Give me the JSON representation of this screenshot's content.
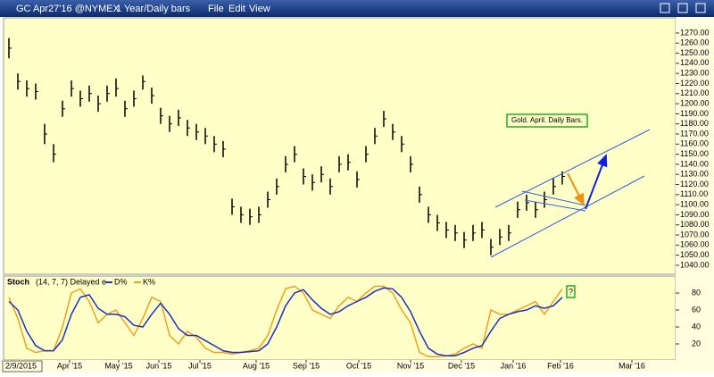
{
  "chart_data": {
    "type": "ohlc",
    "toolbar": {
      "symbol": "GC Apr27'16 @NYMEX",
      "period": "1 Year/Daily bars",
      "menus": [
        "File",
        "Edit",
        "View"
      ]
    },
    "start_date_label": "2/9/2015",
    "annotation": "Gold. April. Daily Bars.",
    "high": [
      1265,
      1230,
      1223,
      1220,
      1180,
      1160,
      1203,
      1223,
      1213,
      1218,
      1208,
      1218,
      1225,
      1203,
      1213,
      1228,
      1216,
      1196,
      1188,
      1194,
      1184,
      1180,
      1176,
      1168,
      1163,
      1106,
      1098,
      1096,
      1098,
      1113,
      1126,
      1148,
      1158,
      1136,
      1130,
      1138,
      1126,
      1148,
      1150,
      1133,
      1158,
      1176,
      1193,
      1180,
      1168,
      1148,
      1118,
      1098,
      1090,
      1083,
      1080,
      1073,
      1080,
      1083,
      1066,
      1076,
      1080,
      1103,
      1110,
      1103,
      1113,
      1126,
      1133
    ],
    "low": [
      1245,
      1214,
      1207,
      1204,
      1160,
      1142,
      1187,
      1207,
      1197,
      1202,
      1192,
      1202,
      1207,
      1187,
      1197,
      1214,
      1200,
      1180,
      1172,
      1178,
      1168,
      1164,
      1160,
      1152,
      1147,
      1090,
      1082,
      1080,
      1082,
      1097,
      1110,
      1132,
      1142,
      1120,
      1114,
      1122,
      1110,
      1132,
      1134,
      1117,
      1142,
      1160,
      1177,
      1164,
      1152,
      1132,
      1102,
      1082,
      1074,
      1067,
      1064,
      1057,
      1064,
      1067,
      1050,
      1060,
      1064,
      1087,
      1094,
      1087,
      1097,
      1110,
      1120
    ],
    "close": [
      1255,
      1222,
      1215,
      1212,
      1170,
      1150,
      1195,
      1215,
      1205,
      1210,
      1200,
      1210,
      1215,
      1195,
      1205,
      1222,
      1208,
      1188,
      1180,
      1186,
      1176,
      1172,
      1168,
      1160,
      1155,
      1098,
      1090,
      1088,
      1090,
      1105,
      1118,
      1140,
      1150,
      1128,
      1122,
      1130,
      1118,
      1140,
      1142,
      1125,
      1150,
      1168,
      1185,
      1172,
      1160,
      1140,
      1110,
      1090,
      1082,
      1075,
      1072,
      1065,
      1072,
      1075,
      1058,
      1068,
      1072,
      1095,
      1102,
      1095,
      1105,
      1118,
      1128
    ],
    "color": "#000000",
    "xlim": [
      -0.6,
      74.7
    ],
    "xticks": [
      {
        "value": 6.8,
        "label": "Apr '15"
      },
      {
        "value": 12.3,
        "label": "May '15"
      },
      {
        "value": 16.8,
        "label": "Jun '15"
      },
      {
        "value": 21.4,
        "label": "Jul '15"
      },
      {
        "value": 27.7,
        "label": "Aug '15"
      },
      {
        "value": 33.3,
        "label": "Sep '15"
      },
      {
        "value": 39.2,
        "label": "Oct '15"
      },
      {
        "value": 45,
        "label": "Nov '15"
      },
      {
        "value": 50.7,
        "label": "Dec '15"
      },
      {
        "value": 56.5,
        "label": "Jan '16"
      },
      {
        "value": 61.8,
        "label": "Feb '16"
      },
      {
        "value": 69.8,
        "label": "Mar '16"
      }
    ],
    "ylim": [
      1032,
      1285
    ],
    "yticks": [
      {
        "value": 1040,
        "label": "1040.00"
      },
      {
        "value": 1050,
        "label": "1050.00"
      },
      {
        "value": 1060,
        "label": "1060.00"
      },
      {
        "value": 1070,
        "label": "1070.00"
      },
      {
        "value": 1080,
        "label": "1080.00"
      },
      {
        "value": 1090,
        "label": "1090.00"
      },
      {
        "value": 1100,
        "label": "1100.00"
      },
      {
        "value": 1110,
        "label": "1110.00"
      },
      {
        "value": 1120,
        "label": "1120.00"
      },
      {
        "value": 1130,
        "label": "1130.00"
      },
      {
        "value": 1140,
        "label": "1140.00"
      },
      {
        "value": 1150,
        "label": "1150.00"
      },
      {
        "value": 1160,
        "label": "1160.00"
      },
      {
        "value": 1170,
        "label": "1170.00"
      },
      {
        "value": 1180,
        "label": "1180.00"
      },
      {
        "value": 1190,
        "label": "1190.00"
      },
      {
        "value": 1200,
        "label": "1200.00"
      },
      {
        "value": 1210,
        "label": "1210.00"
      },
      {
        "value": 1220,
        "label": "1220.00"
      },
      {
        "value": 1230,
        "label": "1230.00"
      },
      {
        "value": 1240,
        "label": "1240.00"
      },
      {
        "value": 1250,
        "label": "1250.00"
      },
      {
        "value": 1260,
        "label": "1260.00"
      },
      {
        "value": 1270,
        "label": "1270.00"
      }
    ],
    "stoch": {
      "title": "Stoch",
      "params": "(14, 7, 7) Delayed e",
      "annotation": "?",
      "ylim": [
        0,
        99
      ],
      "yticks": [
        20,
        40,
        60,
        80
      ],
      "series": [
        {
          "name": "D%",
          "color": "#1f2fbf",
          "values": [
            70,
            60,
            35,
            18,
            12,
            12,
            25,
            55,
            75,
            78,
            62,
            55,
            55,
            52,
            42,
            40,
            55,
            68,
            55,
            38,
            30,
            30,
            24,
            18,
            12,
            10,
            10,
            11,
            12,
            20,
            40,
            65,
            80,
            84,
            72,
            62,
            55,
            58,
            65,
            70,
            75,
            82,
            86,
            85,
            75,
            58,
            35,
            15,
            8,
            6,
            6,
            10,
            15,
            18,
            35,
            50,
            55,
            58,
            60,
            65,
            62,
            65,
            75
          ]
        },
        {
          "name": "K%",
          "color": "#f0a020",
          "values": [
            75,
            50,
            15,
            10,
            12,
            12,
            40,
            80,
            85,
            70,
            45,
            55,
            60,
            45,
            30,
            50,
            75,
            70,
            30,
            20,
            35,
            28,
            15,
            10,
            10,
            8,
            10,
            12,
            15,
            30,
            60,
            85,
            88,
            80,
            60,
            55,
            50,
            65,
            75,
            70,
            80,
            88,
            88,
            80,
            60,
            45,
            10,
            5,
            5,
            6,
            8,
            15,
            20,
            15,
            60,
            55,
            55,
            60,
            65,
            70,
            55,
            70,
            85
          ]
        }
      ]
    }
  }
}
